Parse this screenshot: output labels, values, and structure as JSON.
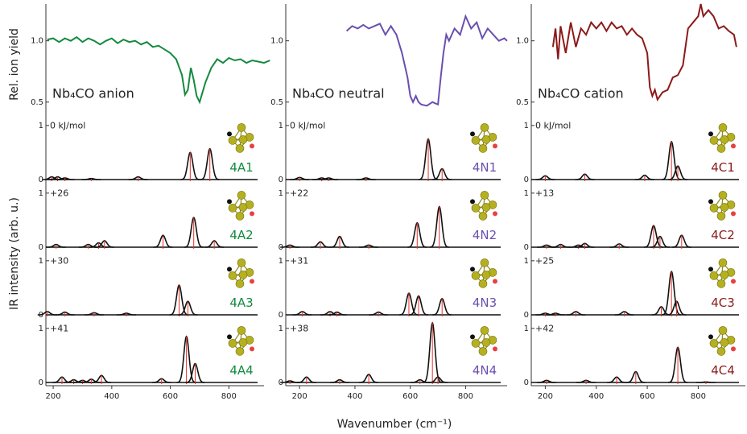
{
  "axis_labels": {
    "top_ylabel": "Rel. ion yield",
    "bottom_ylabel": "IR intensity (arb. u.)",
    "xlabel": "Wavenumber (cm⁻¹)"
  },
  "chart_data": [
    {
      "type": "ir-column",
      "title": "Nb₄CO anion",
      "color": "#138a3e",
      "stick_color": "#e8322a",
      "xlim": [
        175,
        920
      ],
      "xticks": [
        200,
        400,
        600,
        800
      ],
      "experiment": {
        "ylim": [
          0.4,
          1.3
        ],
        "yticks": [
          0.5,
          {
            "value": 1,
            "label": "1.0"
          }
        ],
        "x": [
          180,
          200,
          220,
          240,
          260,
          280,
          300,
          320,
          340,
          360,
          380,
          400,
          420,
          440,
          460,
          480,
          500,
          520,
          540,
          560,
          580,
          600,
          620,
          640,
          650,
          660,
          670,
          680,
          690,
          700,
          720,
          740,
          760,
          780,
          800,
          820,
          840,
          860,
          880,
          900,
          920,
          940
        ],
        "values": [
          1.01,
          1.02,
          0.99,
          1.02,
          1.0,
          1.03,
          0.99,
          1.02,
          1.0,
          0.97,
          1.0,
          1.02,
          0.98,
          1.01,
          0.99,
          1.0,
          0.97,
          0.99,
          0.95,
          0.96,
          0.93,
          0.9,
          0.85,
          0.72,
          0.56,
          0.6,
          0.78,
          0.68,
          0.55,
          0.5,
          0.66,
          0.78,
          0.85,
          0.82,
          0.86,
          0.84,
          0.85,
          0.82,
          0.84,
          0.83,
          0.82,
          0.84
        ]
      },
      "ir_ylim": [
        -0.05,
        1.2
      ],
      "ir_yticks": [
        0,
        1
      ],
      "isomers": [
        {
          "label": "4A1",
          "energy": "0 kJ/mol",
          "peaks": [
            195,
            215,
            240,
            330,
            490,
            668,
            735
          ],
          "intensities": [
            0.05,
            0.05,
            0.03,
            0.02,
            0.05,
            0.5,
            0.57
          ]
        },
        {
          "label": "4A2",
          "energy": "+26",
          "peaks": [
            210,
            320,
            355,
            375,
            575,
            680,
            750
          ],
          "intensities": [
            0.05,
            0.05,
            0.08,
            0.12,
            0.22,
            0.55,
            0.12
          ]
        },
        {
          "label": "4A3",
          "energy": "+30",
          "peaks": [
            180,
            240,
            340,
            450,
            630,
            660
          ],
          "intensities": [
            0.06,
            0.05,
            0.04,
            0.03,
            0.55,
            0.25
          ]
        },
        {
          "label": "4A4",
          "energy": "+41",
          "peaks": [
            230,
            270,
            300,
            330,
            365,
            570,
            655,
            685
          ],
          "intensities": [
            0.1,
            0.05,
            0.04,
            0.06,
            0.13,
            0.07,
            0.85,
            0.35
          ]
        }
      ]
    },
    {
      "type": "ir-column",
      "title": "Nb₄CO neutral",
      "color": "#6a4fb0",
      "stick_color": "#e8322a",
      "xlim": [
        150,
        950
      ],
      "xticks": [
        200,
        400,
        600,
        800
      ],
      "experiment": {
        "ylim": [
          0.4,
          1.3
        ],
        "yticks": [
          0.5,
          {
            "value": 1,
            "label": "1.0"
          }
        ],
        "x": [
          370,
          390,
          410,
          430,
          450,
          470,
          490,
          510,
          530,
          550,
          570,
          590,
          600,
          610,
          620,
          630,
          640,
          660,
          680,
          700,
          710,
          720,
          730,
          740,
          760,
          780,
          800,
          820,
          840,
          860,
          880,
          900,
          920,
          940,
          950
        ],
        "values": [
          1.08,
          1.12,
          1.1,
          1.13,
          1.1,
          1.12,
          1.14,
          1.05,
          1.12,
          1.05,
          0.9,
          0.7,
          0.55,
          0.5,
          0.55,
          0.5,
          0.48,
          0.47,
          0.5,
          0.48,
          0.7,
          0.9,
          1.05,
          1.0,
          1.1,
          1.05,
          1.2,
          1.1,
          1.15,
          1.02,
          1.1,
          1.05,
          1.0,
          1.02,
          1.0
        ]
      },
      "ir_ylim": [
        -0.05,
        1.2
      ],
      "ir_yticks": [
        0,
        1
      ],
      "isomers": [
        {
          "label": "4N1",
          "energy": "0 kJ/mol",
          "peaks": [
            200,
            280,
            305,
            440,
            665,
            715
          ],
          "intensities": [
            0.04,
            0.03,
            0.03,
            0.03,
            0.75,
            0.2
          ]
        },
        {
          "label": "4N2",
          "energy": "+22",
          "peaks": [
            165,
            275,
            345,
            450,
            625,
            705
          ],
          "intensities": [
            0.04,
            0.1,
            0.2,
            0.04,
            0.45,
            0.75
          ]
        },
        {
          "label": "4N3",
          "energy": "+31",
          "peaks": [
            210,
            310,
            335,
            485,
            595,
            630,
            715
          ],
          "intensities": [
            0.06,
            0.06,
            0.05,
            0.05,
            0.4,
            0.35,
            0.3
          ]
        },
        {
          "label": "4N4",
          "energy": "+38",
          "peaks": [
            165,
            225,
            345,
            450,
            635,
            680,
            700
          ],
          "intensities": [
            0.03,
            0.1,
            0.05,
            0.15,
            0.05,
            1.1,
            0.1
          ]
        }
      ]
    },
    {
      "type": "ir-column",
      "title": "Nb₄CO cation",
      "color": "#8b1a1a",
      "stick_color": "#e8322a",
      "xlim": [
        145,
        985
      ],
      "xticks": [
        200,
        400,
        600,
        800
      ],
      "experiment": {
        "ylim": [
          0.4,
          1.3
        ],
        "yticks": [
          0.5,
          {
            "value": 1,
            "label": "1.0"
          }
        ],
        "x": [
          230,
          240,
          250,
          260,
          280,
          300,
          320,
          340,
          360,
          380,
          400,
          420,
          440,
          460,
          480,
          500,
          520,
          540,
          560,
          580,
          600,
          610,
          620,
          630,
          640,
          660,
          680,
          700,
          720,
          740,
          760,
          780,
          800,
          810,
          820,
          840,
          860,
          880,
          900,
          920,
          940,
          950
        ],
        "values": [
          0.95,
          1.1,
          0.85,
          1.12,
          0.9,
          1.15,
          0.95,
          1.1,
          1.05,
          1.15,
          1.1,
          1.15,
          1.08,
          1.15,
          1.1,
          1.12,
          1.05,
          1.1,
          1.05,
          1.02,
          0.9,
          0.62,
          0.55,
          0.6,
          0.52,
          0.58,
          0.6,
          0.7,
          0.72,
          0.8,
          1.1,
          1.15,
          1.2,
          1.3,
          1.2,
          1.25,
          1.2,
          1.1,
          1.12,
          1.08,
          1.05,
          0.95
        ]
      },
      "ir_ylim": [
        -0.05,
        1.2
      ],
      "ir_yticks": [
        0,
        1
      ],
      "isomers": [
        {
          "label": "4C1",
          "energy": "0 kJ/mol",
          "peaks": [
            200,
            355,
            590,
            695,
            720
          ],
          "intensities": [
            0.07,
            0.1,
            0.08,
            0.7,
            0.25
          ]
        },
        {
          "label": "4C2",
          "energy": "+13",
          "peaks": [
            205,
            260,
            330,
            355,
            490,
            625,
            650,
            735
          ],
          "intensities": [
            0.04,
            0.05,
            0.04,
            0.07,
            0.06,
            0.4,
            0.2,
            0.22
          ]
        },
        {
          "label": "4C3",
          "energy": "+25",
          "peaks": [
            200,
            240,
            320,
            510,
            655,
            695,
            715
          ],
          "intensities": [
            0.03,
            0.03,
            0.06,
            0.06,
            0.15,
            0.8,
            0.25
          ]
        },
        {
          "label": "4C4",
          "energy": "+42",
          "peaks": [
            205,
            360,
            480,
            555,
            720,
            830
          ],
          "intensities": [
            0.04,
            0.04,
            0.1,
            0.2,
            0.65,
            0.01
          ]
        }
      ]
    }
  ]
}
